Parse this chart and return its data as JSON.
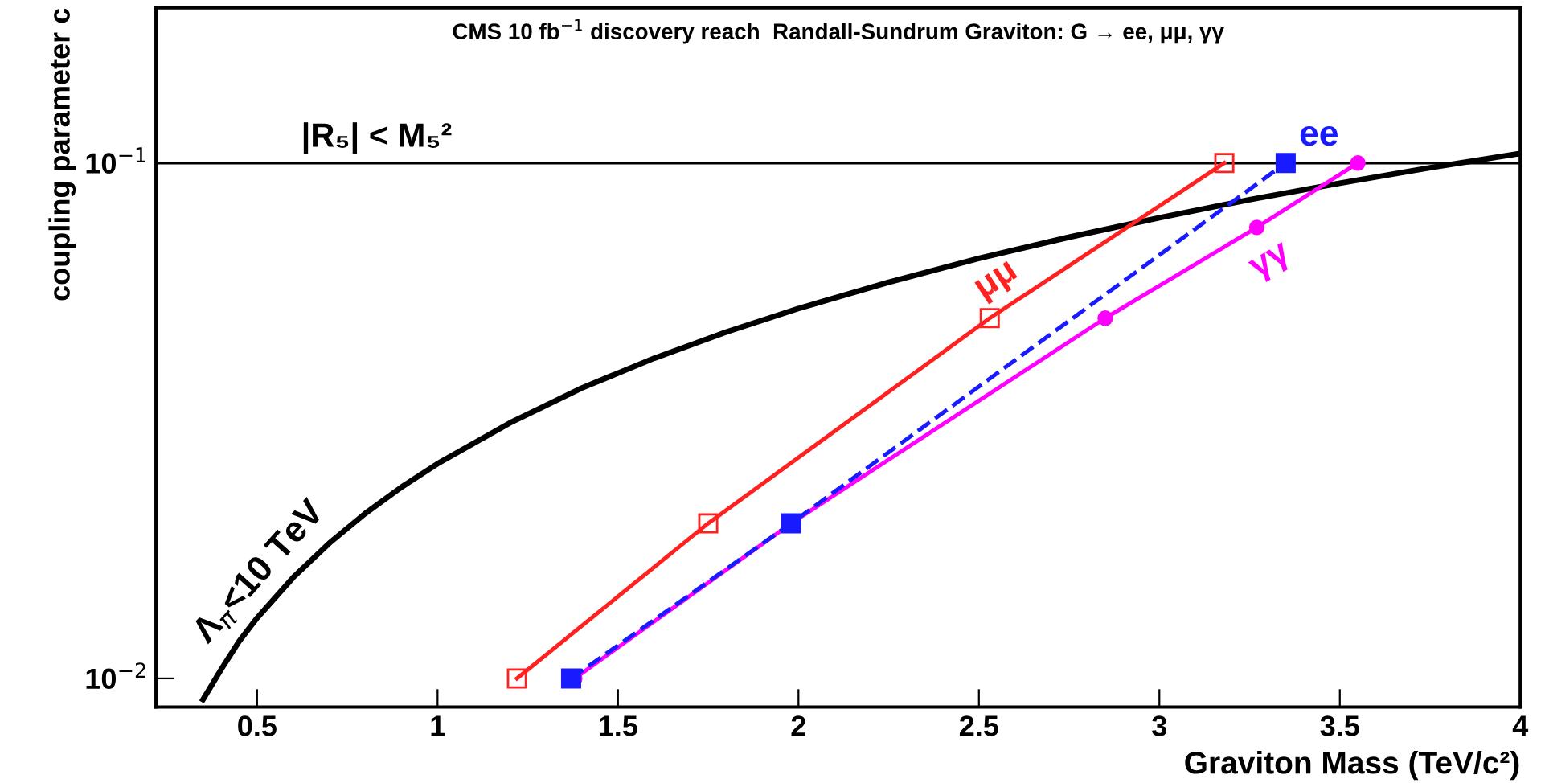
{
  "chart_data": {
    "type": "line",
    "title": "CMS 10 fb$^{−1}$ discovery reach  Randall-Sundrum Graviton: G → ee, μμ, γγ",
    "xlabel": "Graviton Mass (TeV/c²)",
    "ylabel": "coupling parameter c",
    "log": "y",
    "xlim": [
      0.22,
      4.0
    ],
    "ylim": [
      0.0088,
      0.2
    ],
    "xticks": [
      0.5,
      1,
      1.5,
      2,
      2.5,
      3,
      3.5,
      4
    ],
    "yticks": [
      {
        "value": 0.01,
        "label": "10$^{−2}$"
      },
      {
        "value": 0.1,
        "label": "10$^{−1}$"
      }
    ],
    "grid": false,
    "legend": false,
    "series": [
      {
        "name": "Λ$_{π}$<10 TeV",
        "color": "#000000",
        "marker": "none",
        "line_style": "solid",
        "x": [
          0.35,
          0.4,
          0.45,
          0.5,
          0.6,
          0.7,
          0.8,
          0.9,
          1,
          1.2,
          1.4,
          1.6,
          1.8,
          2,
          2.25,
          2.5,
          2.75,
          3,
          3.25,
          3.5,
          3.75,
          4
        ],
        "values": [
          0.0091,
          0.0104,
          0.0118,
          0.0131,
          0.0157,
          0.0183,
          0.0209,
          0.0235,
          0.0261,
          0.0313,
          0.0366,
          0.0418,
          0.047,
          0.0522,
          0.0587,
          0.0653,
          0.0718,
          0.0783,
          0.0849,
          0.0914,
          0.0979,
          0.1044
        ]
      },
      {
        "name": "μμ",
        "color": "#ff2020",
        "marker": "square",
        "line_style": "solid",
        "x": [
          1.22,
          1.75,
          2.53,
          3.18
        ],
        "values": [
          0.01,
          0.02,
          0.05,
          0.1
        ]
      },
      {
        "name": "ee",
        "color": "#1a1aff",
        "marker": "square",
        "line_style": "dashed",
        "x": [
          1.37,
          1.98,
          3.35
        ],
        "values": [
          0.01,
          0.02,
          0.1
        ]
      },
      {
        "name": "γγ",
        "color": "#ff00ff",
        "marker": "circle",
        "line_style": "solid",
        "x": [
          1.38,
          1.98,
          2.85,
          3.27,
          3.55
        ],
        "values": [
          0.01,
          0.02,
          0.05,
          0.075,
          0.1
        ]
      }
    ],
    "ref_lines": [
      {
        "axis": "y",
        "value": 0.1,
        "label": "|R₅| < M₅²",
        "color": "#000000",
        "line_style": "solid"
      }
    ]
  }
}
